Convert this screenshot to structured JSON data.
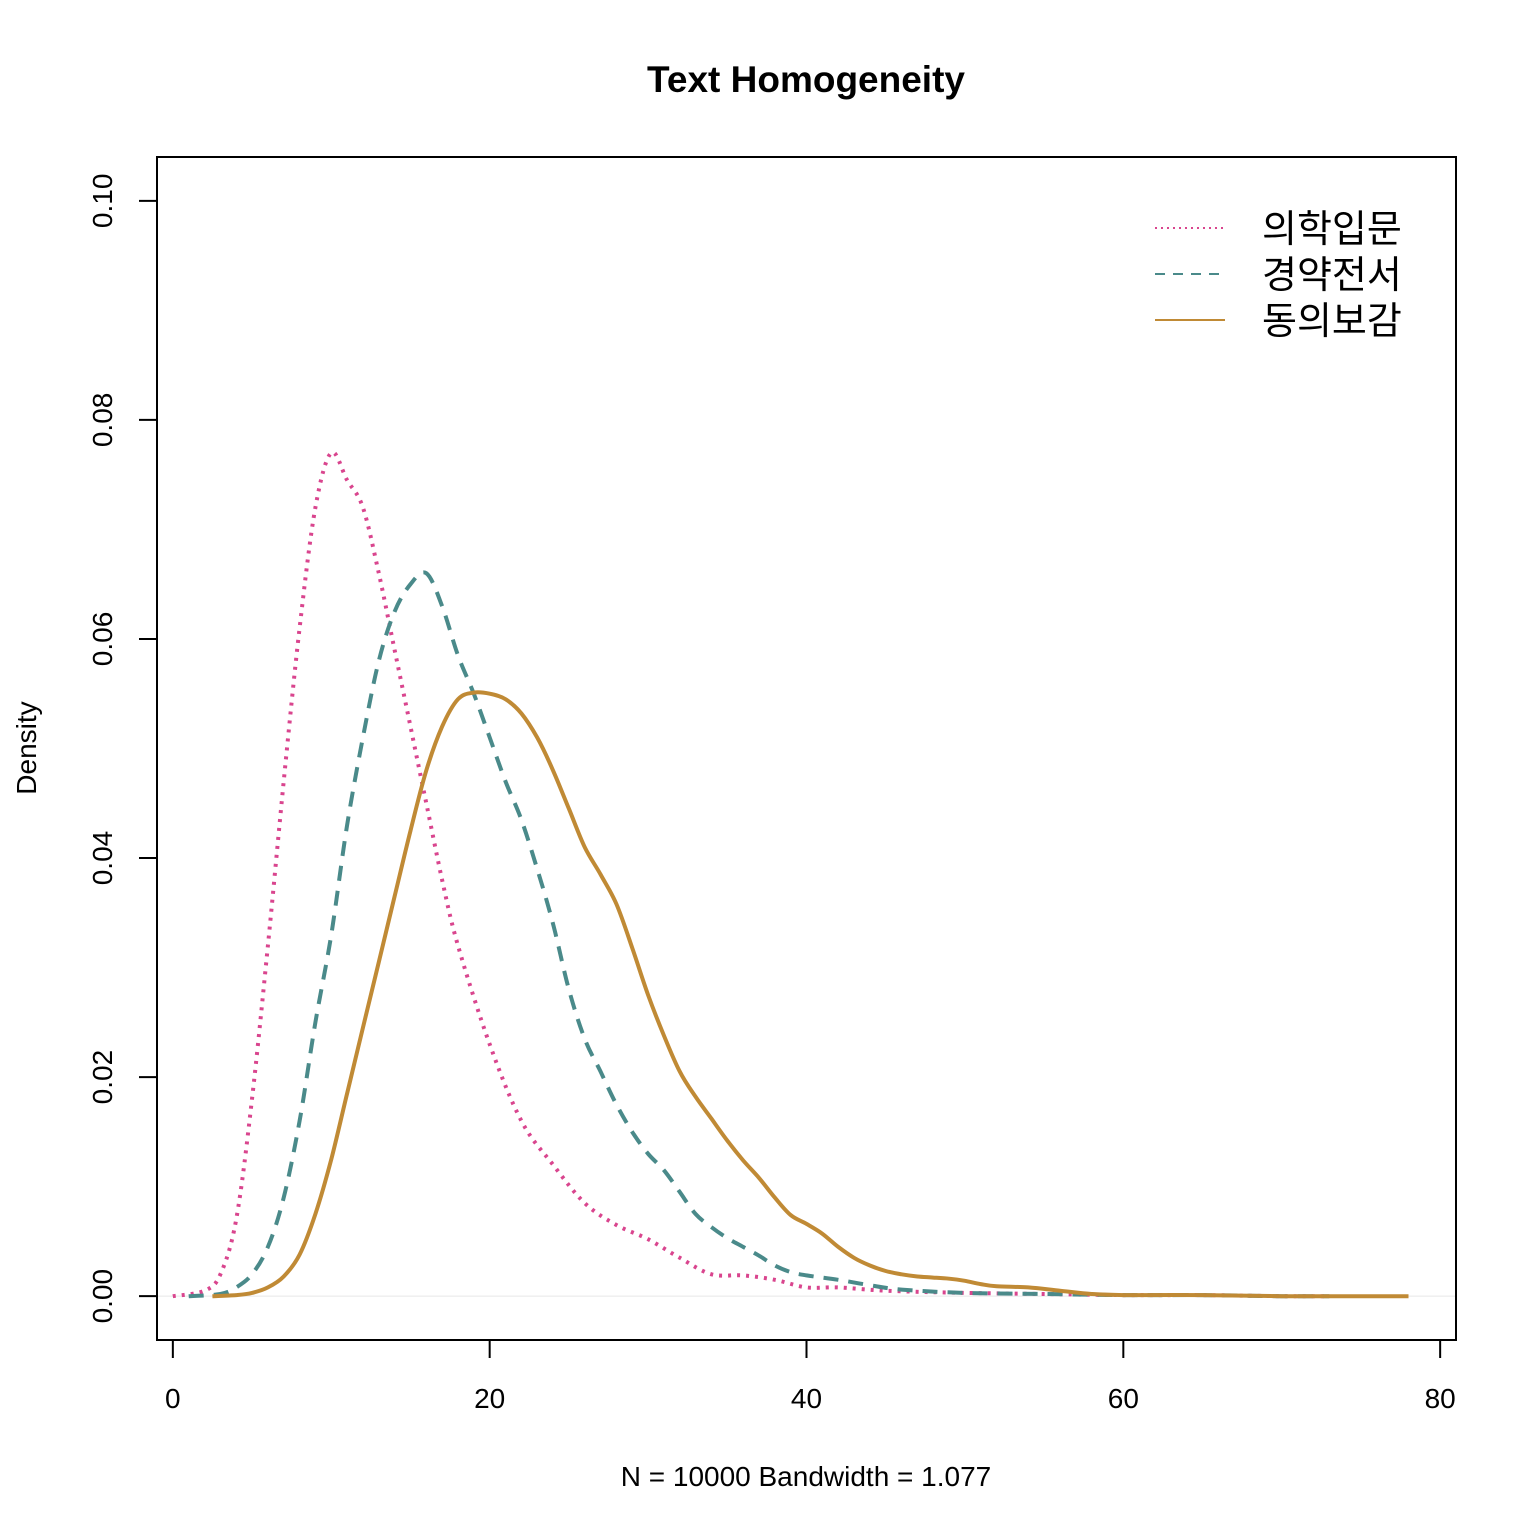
{
  "chart_data": {
    "type": "line",
    "title": "Text Homogeneity",
    "xlabel": "N = 10000   Bandwidth = 1.077",
    "ylabel": "Density",
    "xlim": [
      -1,
      81
    ],
    "ylim": [
      -0.004,
      0.104
    ],
    "x_ticks": [
      0,
      20,
      40,
      60,
      80
    ],
    "y_ticks": [
      0.0,
      0.02,
      0.04,
      0.06,
      0.08,
      0.1
    ],
    "x_tick_labels": [
      "0",
      "20",
      "40",
      "60",
      "80"
    ],
    "y_tick_labels": [
      "0.00",
      "0.02",
      "0.04",
      "0.06",
      "0.08",
      "0.10"
    ],
    "grid": false,
    "legend_position": "top-right",
    "baseline": 0,
    "series": [
      {
        "name": "의학입문",
        "color": "#d9458e",
        "dash": "dotted",
        "points": [
          [
            0,
            0.0
          ],
          [
            2,
            0.0005
          ],
          [
            3,
            0.002
          ],
          [
            4,
            0.007
          ],
          [
            5,
            0.018
          ],
          [
            6,
            0.032
          ],
          [
            7,
            0.047
          ],
          [
            8,
            0.061
          ],
          [
            9,
            0.072
          ],
          [
            10,
            0.077
          ],
          [
            11,
            0.0745
          ],
          [
            12,
            0.072
          ],
          [
            13,
            0.066
          ],
          [
            14,
            0.059
          ],
          [
            15,
            0.052
          ],
          [
            16,
            0.045
          ],
          [
            17,
            0.038
          ],
          [
            18,
            0.032
          ],
          [
            20,
            0.023
          ],
          [
            22,
            0.016
          ],
          [
            24,
            0.012
          ],
          [
            26,
            0.0085
          ],
          [
            28,
            0.0065
          ],
          [
            30,
            0.0052
          ],
          [
            32,
            0.0035
          ],
          [
            34,
            0.002
          ],
          [
            36,
            0.0019
          ],
          [
            38,
            0.0015
          ],
          [
            40,
            0.0008
          ],
          [
            42,
            0.0008
          ],
          [
            45,
            0.0005
          ],
          [
            50,
            0.0003
          ],
          [
            55,
            0.0002
          ],
          [
            60,
            0.0001
          ],
          [
            65,
            0.0001
          ],
          [
            70,
            0.0
          ],
          [
            73,
            0.0
          ]
        ]
      },
      {
        "name": "경약전서",
        "color": "#4a8a8a",
        "dash": "dashed",
        "points": [
          [
            1,
            0.0
          ],
          [
            3,
            0.0002
          ],
          [
            4,
            0.0008
          ],
          [
            5,
            0.002
          ],
          [
            6,
            0.0045
          ],
          [
            7,
            0.009
          ],
          [
            8,
            0.016
          ],
          [
            9,
            0.025
          ],
          [
            10,
            0.033
          ],
          [
            11,
            0.043
          ],
          [
            12,
            0.051
          ],
          [
            13,
            0.058
          ],
          [
            14,
            0.0625
          ],
          [
            15,
            0.065
          ],
          [
            16,
            0.066
          ],
          [
            17,
            0.063
          ],
          [
            18,
            0.0585
          ],
          [
            19,
            0.055
          ],
          [
            20,
            0.051
          ],
          [
            21,
            0.047
          ],
          [
            22,
            0.0435
          ],
          [
            23,
            0.039
          ],
          [
            24,
            0.034
          ],
          [
            25,
            0.028
          ],
          [
            26,
            0.0235
          ],
          [
            27,
            0.0205
          ],
          [
            28,
            0.0175
          ],
          [
            29,
            0.015
          ],
          [
            30,
            0.013
          ],
          [
            31,
            0.0115
          ],
          [
            32,
            0.0095
          ],
          [
            33,
            0.0075
          ],
          [
            34,
            0.0063
          ],
          [
            35,
            0.0053
          ],
          [
            36,
            0.0045
          ],
          [
            37,
            0.0037
          ],
          [
            38,
            0.0028
          ],
          [
            39,
            0.0022
          ],
          [
            40,
            0.0019
          ],
          [
            42,
            0.0015
          ],
          [
            44,
            0.001
          ],
          [
            46,
            0.0006
          ],
          [
            50,
            0.0003
          ],
          [
            55,
            0.0002
          ],
          [
            60,
            0.0001
          ],
          [
            65,
            0.0001
          ],
          [
            70,
            0.0
          ],
          [
            73,
            0.0
          ]
        ]
      },
      {
        "name": "동의보감",
        "color": "#c08a35",
        "dash": "solid",
        "points": [
          [
            2.5,
            0.0
          ],
          [
            4,
            0.0001
          ],
          [
            5,
            0.0003
          ],
          [
            6,
            0.0008
          ],
          [
            7,
            0.0018
          ],
          [
            8,
            0.0038
          ],
          [
            9,
            0.0075
          ],
          [
            10,
            0.0125
          ],
          [
            11,
            0.0185
          ],
          [
            12,
            0.0245
          ],
          [
            13,
            0.0305
          ],
          [
            14,
            0.0365
          ],
          [
            15,
            0.0425
          ],
          [
            16,
            0.048
          ],
          [
            17,
            0.052
          ],
          [
            18,
            0.0545
          ],
          [
            19,
            0.0551
          ],
          [
            20,
            0.055
          ],
          [
            21,
            0.0545
          ],
          [
            22,
            0.0532
          ],
          [
            23,
            0.051
          ],
          [
            24,
            0.048
          ],
          [
            25,
            0.0445
          ],
          [
            26,
            0.041
          ],
          [
            27,
            0.0385
          ],
          [
            28,
            0.0358
          ],
          [
            29,
            0.0318
          ],
          [
            30,
            0.0275
          ],
          [
            31,
            0.0238
          ],
          [
            32,
            0.0205
          ],
          [
            33,
            0.0182
          ],
          [
            34,
            0.0162
          ],
          [
            35,
            0.0142
          ],
          [
            36,
            0.0124
          ],
          [
            37,
            0.0108
          ],
          [
            38,
            0.009
          ],
          [
            39,
            0.0074
          ],
          [
            40,
            0.0066
          ],
          [
            41,
            0.0057
          ],
          [
            42,
            0.0045
          ],
          [
            43,
            0.0035
          ],
          [
            44,
            0.0028
          ],
          [
            45,
            0.0023
          ],
          [
            46,
            0.002
          ],
          [
            47,
            0.0018
          ],
          [
            48,
            0.0017
          ],
          [
            49,
            0.0016
          ],
          [
            50,
            0.0014
          ],
          [
            51,
            0.0011
          ],
          [
            52,
            0.0009
          ],
          [
            54,
            0.0008
          ],
          [
            56,
            0.0005
          ],
          [
            58,
            0.0002
          ],
          [
            60,
            0.0001
          ],
          [
            65,
            0.0001
          ],
          [
            70,
            0.0
          ],
          [
            75,
            0.0
          ],
          [
            78,
            0.0
          ]
        ]
      }
    ]
  }
}
